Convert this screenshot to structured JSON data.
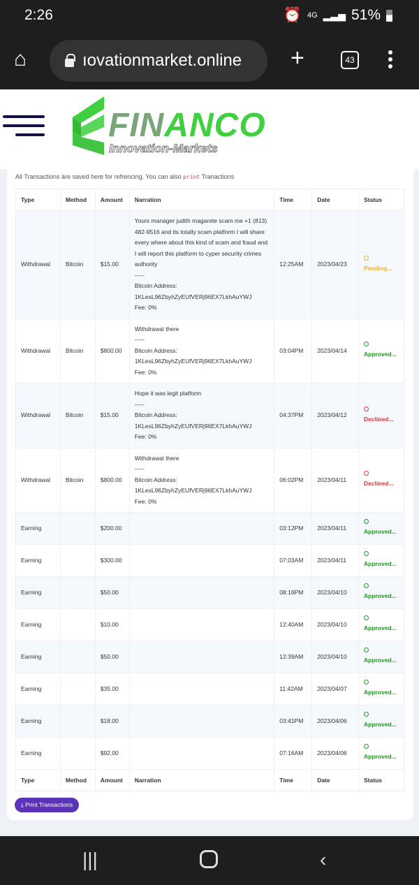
{
  "status_bar": {
    "time": "2:26",
    "network": "4G",
    "battery": "51%"
  },
  "browser": {
    "url": "ıovationmarket.online",
    "tab_count": "43"
  },
  "logo": {
    "brand_a": "FIN",
    "brand_b": "ANCO",
    "tagline": "Innovation-Markets",
    "colors": {
      "green": "#3fcf3f",
      "grey": "#7aa47a"
    }
  },
  "intro": {
    "text_before": "All Transactions are saved here for refrencing. You can also ",
    "code": "print",
    "text_after": " Tranactions"
  },
  "table": {
    "headers": [
      "Type",
      "Method",
      "Amount",
      "Narration",
      "Time",
      "Date",
      "Status"
    ],
    "rows": [
      {
        "type": "Withdrawal",
        "method": "Bitcoin",
        "amount": "$15.00",
        "narration": [
          "Yours manager judith magarete scam me +1 (813) 482-9516 and its totally scam platform I will share every where about this kind of scam and fraud and I will report this platform to cyper security crimes authority",
          "-----",
          "Bitcoin Address:",
          "1KLesL96ZbyhZyEUfVERj96EX7LkhAuYWJ",
          "Fee: 0%"
        ],
        "time": "12:25AM",
        "date": "2023/04/23",
        "status": "Pending...",
        "status_kind": "pending"
      },
      {
        "type": "Withdrawal",
        "method": "Bitcoin",
        "amount": "$800.00",
        "narration": [
          "Withdrawal there",
          "-----",
          "Bitcoin Address:",
          "1KLesL96ZbyhZyEUfVERj96EX7LkhAuYWJ",
          "Fee: 0%"
        ],
        "time": "03:04PM",
        "date": "2023/04/14",
        "status": "Approved...",
        "status_kind": "approved"
      },
      {
        "type": "Withdrawal",
        "method": "Bitcoin",
        "amount": "$15.00",
        "narration": [
          "Hope it was legit platform",
          "-----",
          "Bitcoin Address:",
          "1KLesL96ZbyhZyEUfVERj96EX7LkhAuYWJ",
          "Fee: 0%"
        ],
        "time": "04:37PM",
        "date": "2023/04/12",
        "status": "Declined...",
        "status_kind": "declined"
      },
      {
        "type": "Withdrawal",
        "method": "Bitcoin",
        "amount": "$800.00",
        "narration": [
          "Withdrawal there",
          "-----",
          "Bitcoin Address:",
          "1KLesL96ZbyhZyEUfVERj96EX7LkhAuYWJ",
          "Fee: 0%"
        ],
        "time": "06:02PM",
        "date": "2023/04/11",
        "status": "Declined...",
        "status_kind": "declined"
      },
      {
        "type": "Earning",
        "method": "",
        "amount": "$200.00",
        "narration": [],
        "time": "03:12PM",
        "date": "2023/04/11",
        "status": "Approved...",
        "status_kind": "approved"
      },
      {
        "type": "Earning",
        "method": "",
        "amount": "$300.00",
        "narration": [],
        "time": "07:03AM",
        "date": "2023/04/11",
        "status": "Approved...",
        "status_kind": "approved"
      },
      {
        "type": "Earning",
        "method": "",
        "amount": "$50.00",
        "narration": [],
        "time": "08:16PM",
        "date": "2023/04/10",
        "status": "Approved...",
        "status_kind": "approved"
      },
      {
        "type": "Earning",
        "method": "",
        "amount": "$10.00",
        "narration": [],
        "time": "12:40AM",
        "date": "2023/04/10",
        "status": "Approved...",
        "status_kind": "approved"
      },
      {
        "type": "Earning",
        "method": "",
        "amount": "$50.00",
        "narration": [],
        "time": "12:39AM",
        "date": "2023/04/10",
        "status": "Approved...",
        "status_kind": "approved"
      },
      {
        "type": "Earning",
        "method": "",
        "amount": "$35.00",
        "narration": [],
        "time": "11:42AM",
        "date": "2023/04/07",
        "status": "Approved...",
        "status_kind": "approved"
      },
      {
        "type": "Earning",
        "method": "",
        "amount": "$18.00",
        "narration": [],
        "time": "03:41PM",
        "date": "2023/04/06",
        "status": "Approved...",
        "status_kind": "approved"
      },
      {
        "type": "Earning",
        "method": "",
        "amount": "$92.00",
        "narration": [],
        "time": "07:16AM",
        "date": "2023/04/06",
        "status": "Approved...",
        "status_kind": "approved"
      }
    ]
  },
  "print_button": {
    "label": "⤓ Print Transactions",
    "color": "#5b33b8"
  }
}
